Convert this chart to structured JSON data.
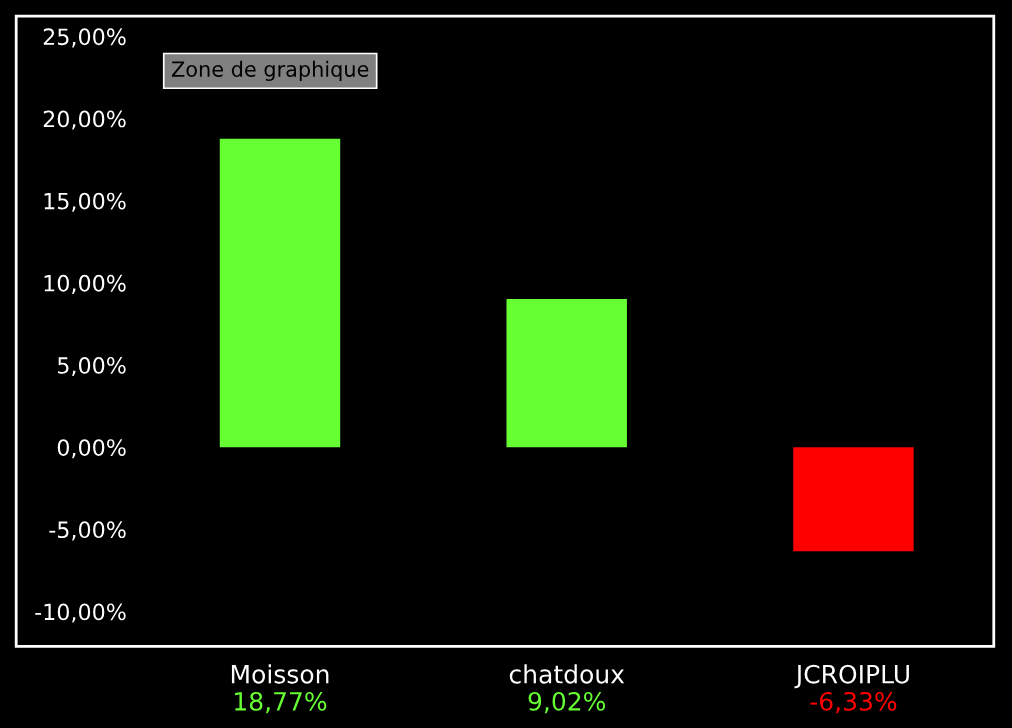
{
  "chart_data": {
    "type": "bar",
    "categories": [
      "Moisson",
      "chatdoux",
      "JCROIPLU"
    ],
    "values": [
      18.77,
      9.02,
      -6.33
    ],
    "colors": [
      "#66ff33",
      "#66ff33",
      "#ff0000"
    ],
    "value_labels": [
      "18,77%",
      "9,02%",
      "-6,33%"
    ],
    "ylim": [
      -10,
      25
    ],
    "yticks": [
      {
        "value": -10,
        "label": "-10,00%"
      },
      {
        "value": -5,
        "label": "-5,00%"
      },
      {
        "value": 0,
        "label": "0,00%"
      },
      {
        "value": 5,
        "label": "5,00%"
      },
      {
        "value": 10,
        "label": "10,00%"
      },
      {
        "value": 15,
        "label": "15,00%"
      },
      {
        "value": 20,
        "label": "20,00%"
      },
      {
        "value": 25,
        "label": "25,00%"
      }
    ],
    "annotations": [
      "Zone de graphique"
    ],
    "grid": false,
    "legend": false
  }
}
